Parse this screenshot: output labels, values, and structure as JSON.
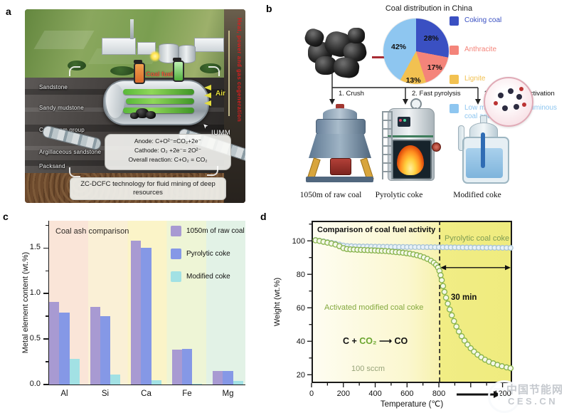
{
  "figure": {
    "panel_letters": {
      "a": "a",
      "b": "b",
      "c": "c",
      "d": "d"
    }
  },
  "panel_a": {
    "strata_labels": [
      "Sandstone",
      "Sandy mudstone",
      "Coal seam group",
      "Argillaceous sandstone",
      "Packsand"
    ],
    "coal_fuel_label": "Coal fuel",
    "air_label": "Air",
    "side_pipe_label": "Heat, power and gas cogeneration",
    "iumm_label": "IUMM",
    "reaction_lines": {
      "anode": "Anode: C+O²⁻=CO₂+2e⁻",
      "cathode": "Cathode: O₂ +2e⁻= 2O²⁻",
      "overall": "Overall reaction: C+O₂ = CO₂"
    },
    "caption": "ZC-DCFC technology for fluid mining of deep resources"
  },
  "panel_b": {
    "title": "Coal distribution in China",
    "steps": [
      "1. Crush",
      "2. Fast pyrolysis",
      "3. Acetic acid activation"
    ],
    "product_labels": [
      "1050m of raw coal",
      "Pyrolytic coke",
      "Modified coke"
    ]
  },
  "panel_c": {
    "title": "Coal ash comparison"
  },
  "panel_d": {
    "title": "Comparison of coal fuel activity",
    "series_label_top": "Pyrolytic coal coke",
    "series_label_main": "Activated modified coal coke",
    "reaction": {
      "c": "C + ",
      "co2": "CO₂",
      "arrow": " ⟶ ",
      "co": "CO"
    },
    "flow_label": "100 sccm",
    "hold_label": "30 min"
  },
  "watermark": {
    "name": "中国节能网",
    "url": "CES.CN"
  },
  "chart_data": [
    {
      "type": "pie",
      "panel": "b",
      "title": "Coal distribution in China",
      "legend_position": "right",
      "start_angle_deg": 0,
      "clockwise": true,
      "slices": [
        {
          "label": "Coking coal",
          "value": 28,
          "color": "#3a50c2",
          "pct_label": "28%"
        },
        {
          "label": "Anthracite",
          "value": 17,
          "color": "#f4847a",
          "pct_label": "17%"
        },
        {
          "label": "Lignite",
          "value": 13,
          "color": "#f2c151",
          "pct_label": "13%"
        },
        {
          "label": "Low metamorphic bituminous coal and lean coal",
          "value": 42,
          "color": "#8ec6f0",
          "pct_label": "42%"
        }
      ]
    },
    {
      "type": "bar",
      "panel": "c",
      "title": "Coal ash comparison",
      "categories": [
        "Al",
        "Si",
        "Ca",
        "Fe",
        "Mg"
      ],
      "series": [
        {
          "name": "1050m of raw coal",
          "color": "#a89ad2",
          "values": [
            0.91,
            0.85,
            1.58,
            0.38,
            0.15
          ]
        },
        {
          "name": "Pyrolytic coke",
          "color": "#8598e6",
          "values": [
            0.79,
            0.75,
            1.5,
            0.39,
            0.15
          ]
        },
        {
          "name": "Modified coke",
          "color": "#a2e1e4",
          "values": [
            0.28,
            0.11,
            0.05,
            0.01,
            0.04
          ]
        }
      ],
      "ylabel": "Metal element content (wt.%)",
      "ylim": [
        0,
        1.8
      ],
      "yticks": [
        0,
        0.5,
        1.0,
        1.5
      ],
      "ytick_labels": [
        "0.0",
        "0.5",
        "1.0",
        "1.5"
      ],
      "minor_yticks": [
        0.25,
        0.75,
        1.25,
        1.75
      ],
      "background_bands": [
        "#fae5d8",
        "#faf0d6",
        "#fbf4c8",
        "#eef5d6",
        "#e2f2e6"
      ]
    },
    {
      "type": "line",
      "panel": "d",
      "title": "Comparison of coal fuel activity",
      "xlabel": "Temperature (℃)",
      "ylabel": "Weight (wt.%)",
      "xlim": [
        0,
        1260
      ],
      "ylim": [
        15,
        112
      ],
      "xticks": [
        0,
        200,
        400,
        600,
        800
      ],
      "xtick_labels": [
        "0",
        "200",
        "400",
        "600",
        "800"
      ],
      "obscured_xtick": {
        "value": 1200,
        "label": "1200"
      },
      "yticks": [
        20,
        40,
        60,
        80,
        100
      ],
      "dashed_line_x": 805,
      "hold_arrow": {
        "y": 84,
        "x_start": 805,
        "x_end": 1260,
        "label": "30 min"
      },
      "series": [
        {
          "name": "Pyrolytic coal coke",
          "stroke": "#a9c4d6",
          "fill": "#e8f2f8",
          "marker_r": 3.4,
          "points": [
            [
              25,
              100.5
            ],
            [
              50,
              100.1
            ],
            [
              75,
              99.7
            ],
            [
              100,
              99.2
            ],
            [
              125,
              98.8
            ],
            [
              150,
              98.3
            ],
            [
              175,
              97.8
            ],
            [
              200,
              97.2
            ],
            [
              225,
              96.9
            ],
            [
              250,
              96.8
            ],
            [
              275,
              96.7
            ],
            [
              300,
              96.65
            ],
            [
              325,
              96.6
            ],
            [
              350,
              96.6
            ],
            [
              375,
              96.55
            ],
            [
              400,
              96.5
            ],
            [
              425,
              96.5
            ],
            [
              450,
              96.45
            ],
            [
              475,
              96.45
            ],
            [
              500,
              96.4
            ],
            [
              525,
              96.4
            ],
            [
              550,
              96.35
            ],
            [
              575,
              96.35
            ],
            [
              600,
              96.3
            ],
            [
              625,
              96.3
            ],
            [
              650,
              96.28
            ],
            [
              675,
              96.26
            ],
            [
              700,
              96.24
            ],
            [
              725,
              96.22
            ],
            [
              750,
              96.2
            ],
            [
              775,
              96.18
            ],
            [
              800,
              96.16
            ],
            [
              825,
              96.14
            ],
            [
              850,
              96.12
            ],
            [
              875,
              96.1
            ],
            [
              900,
              96.08
            ],
            [
              925,
              96.06
            ],
            [
              950,
              96.04
            ],
            [
              975,
              96.02
            ],
            [
              1000,
              96.0
            ],
            [
              1025,
              95.98
            ],
            [
              1050,
              95.96
            ],
            [
              1075,
              95.94
            ],
            [
              1100,
              95.92
            ],
            [
              1125,
              95.9
            ],
            [
              1150,
              95.88
            ],
            [
              1175,
              95.86
            ],
            [
              1200,
              95.84
            ],
            [
              1225,
              95.82
            ],
            [
              1250,
              95.8
            ]
          ]
        },
        {
          "name": "Activated modified coal coke",
          "stroke": "#86b24a",
          "fill": "#f4f8e8",
          "marker_r": 3.6,
          "points": [
            [
              25,
              100.3
            ],
            [
              50,
              99.9
            ],
            [
              75,
              99.4
            ],
            [
              100,
              98.9
            ],
            [
              125,
              98.4
            ],
            [
              150,
              97.8
            ],
            [
              175,
              96.8
            ],
            [
              200,
              95.6
            ],
            [
              222,
              95.1
            ],
            [
              244,
              94.9
            ],
            [
              266,
              94.8
            ],
            [
              288,
              94.7
            ],
            [
              310,
              94.6
            ],
            [
              332,
              94.5
            ],
            [
              354,
              94.4
            ],
            [
              376,
              94.3
            ],
            [
              398,
              94.2
            ],
            [
              420,
              94.1
            ],
            [
              442,
              94.0
            ],
            [
              464,
              93.9
            ],
            [
              486,
              93.7
            ],
            [
              508,
              93.5
            ],
            [
              530,
              93.3
            ],
            [
              552,
              93.1
            ],
            [
              574,
              92.9
            ],
            [
              596,
              92.6
            ],
            [
              618,
              92.3
            ],
            [
              640,
              91.9
            ],
            [
              662,
              91.4
            ],
            [
              684,
              90.8
            ],
            [
              706,
              90.1
            ],
            [
              728,
              89.2
            ],
            [
              750,
              88.1
            ],
            [
              768,
              86.9
            ],
            [
              783,
              85.6
            ],
            [
              795,
              84.0
            ],
            [
              804,
              82.0
            ],
            [
              811,
              79.5
            ],
            [
              818,
              76.5
            ],
            [
              826,
              73.0
            ],
            [
              835,
              69.5
            ],
            [
              845,
              66.0
            ],
            [
              856,
              62.5
            ],
            [
              868,
              59.0
            ],
            [
              881,
              55.5
            ],
            [
              895,
              52.0
            ],
            [
              910,
              48.8
            ],
            [
              926,
              45.8
            ],
            [
              943,
              43.0
            ],
            [
              961,
              40.4
            ],
            [
              980,
              38.0
            ],
            [
              1000,
              35.8
            ],
            [
              1021,
              33.8
            ],
            [
              1043,
              32.0
            ],
            [
              1066,
              30.4
            ],
            [
              1090,
              29.0
            ],
            [
              1115,
              27.8
            ],
            [
              1141,
              26.8
            ],
            [
              1168,
              25.9
            ],
            [
              1196,
              25.1
            ],
            [
              1225,
              24.4
            ],
            [
              1250,
              23.9
            ]
          ]
        }
      ]
    }
  ]
}
